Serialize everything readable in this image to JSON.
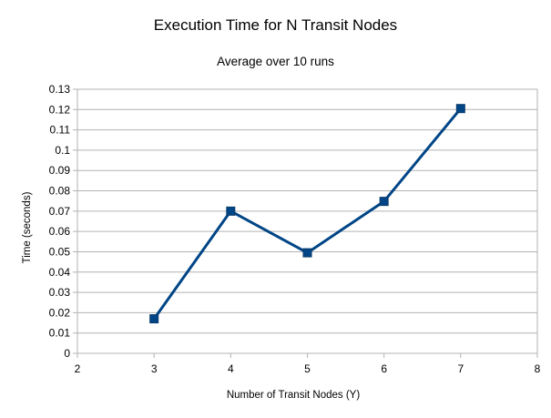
{
  "chart_data": {
    "type": "line",
    "title": "Execution Time for N Transit Nodes",
    "subtitle": "Average over 10 runs",
    "xlabel": "Number of Transit Nodes (Y)",
    "ylabel": "Time (seconds)",
    "xlim": [
      2,
      8
    ],
    "ylim": [
      0,
      0.13
    ],
    "x_ticks": [
      "2",
      "3",
      "4",
      "5",
      "6",
      "7",
      "8"
    ],
    "y_ticks": [
      "0",
      "0.01",
      "0.02",
      "0.03",
      "0.04",
      "0.05",
      "0.06",
      "0.07",
      "0.08",
      "0.09",
      "0.1",
      "0.11",
      "0.12",
      "0.13"
    ],
    "grid": "horizontal",
    "legend": "none",
    "series": [
      {
        "color": "#004586",
        "marker": "square",
        "x": [
          3,
          4,
          5,
          6,
          7
        ],
        "y": [
          0.017,
          0.07,
          0.0495,
          0.0748,
          0.1205
        ]
      }
    ]
  }
}
